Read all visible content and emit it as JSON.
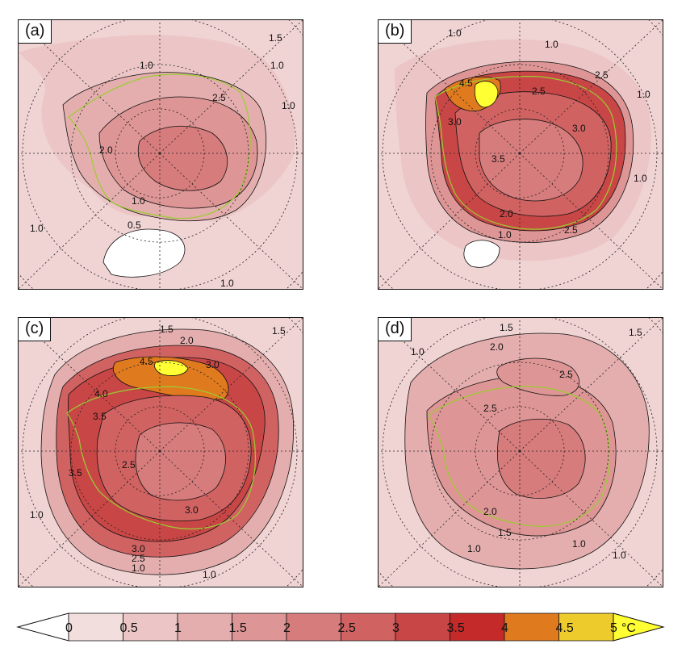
{
  "panels": [
    {
      "id": "a",
      "label": "(a)",
      "contour_labels": [
        "1.5",
        "1.0",
        "1.0",
        "1.0",
        "2.5",
        "2.0",
        "1.0",
        "0.5",
        "1.0",
        "1.0"
      ]
    },
    {
      "id": "b",
      "label": "(b)",
      "contour_labels": [
        "1.0",
        "1.0",
        "1.0",
        "2.5",
        "2.5",
        "4.5",
        "3.0",
        "3.0",
        "3.5",
        "2.0",
        "1.0",
        "2.5",
        "1.0"
      ]
    },
    {
      "id": "c",
      "label": "(c)",
      "contour_labels": [
        "1.5",
        "1.5",
        "2.0",
        "4.5",
        "3.0",
        "4.0",
        "3.5",
        "2.5",
        "3.0",
        "3.5",
        "3.0",
        "2.5",
        "1.0",
        "1.0",
        "1.0"
      ]
    },
    {
      "id": "d",
      "label": "(d)",
      "contour_labels": [
        "1.5",
        "2.0",
        "1.0",
        "2.5",
        "1.5",
        "2.5",
        "2.0",
        "1.5",
        "1.0",
        "1.0",
        "1.0"
      ]
    }
  ],
  "colorbar": {
    "tick_labels": [
      "0",
      "0.5",
      "1",
      "1.5",
      "2",
      "2.5",
      "3",
      "3.5",
      "4",
      "4.5",
      "5"
    ],
    "unit": "°C",
    "colors": [
      "#ffffff",
      "#f3dede",
      "#ecc6c6",
      "#e5aeae",
      "#de9595",
      "#d77c7c",
      "#d06262",
      "#c94646",
      "#c52a2a",
      "#e07a1e",
      "#eecb2c",
      "#ffff33"
    ]
  }
}
